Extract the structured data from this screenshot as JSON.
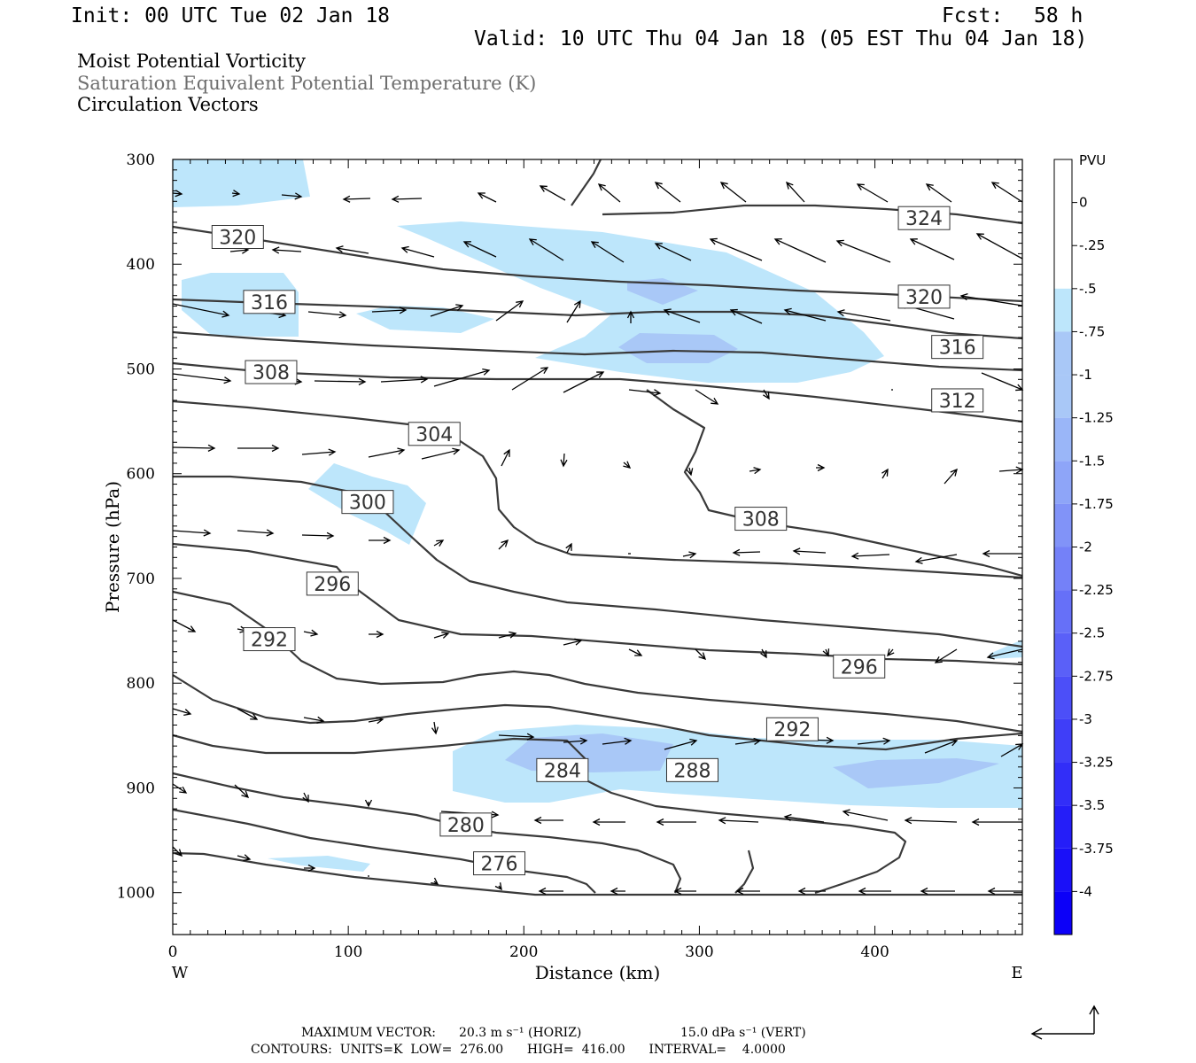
{
  "header": {
    "init": "Init: 00 UTC Tue 02 Jan 18",
    "fcst_label": "Fcst:",
    "fcst_value": "58 h",
    "valid": "Valid: 10 UTC Thu 04 Jan 18 (05 EST Thu 04 Jan 18)",
    "field1": "Moist Potential Vorticity",
    "field2": "Saturation Equivalent Potential Temperature (K)",
    "field3": "Circulation Vectors"
  },
  "footer": {
    "max_vector_label": "MAXIMUM VECTOR:",
    "max_horiz": "20.3 m s⁻¹ (HORIZ)",
    "max_vert": "15.0 dPa s⁻¹ (VERT)",
    "contours": "CONTOURS:  UNITS=K  LOW=  276.00      HIGH=  416.00      INTERVAL=    4.0000"
  },
  "colors": {
    "pv_fill_1": "#bde6fb",
    "pv_fill_2": "#a9c8f7",
    "contour": "#3a3a3a",
    "vector": "#000000"
  },
  "chart_data": {
    "type": "cross-section",
    "xlabel": "Distance (km)",
    "ylabel": "Pressure (hPa)",
    "xlim": [
      0,
      484
    ],
    "ylim": [
      1040,
      300
    ],
    "x_ticks": [
      0,
      100,
      200,
      300,
      400
    ],
    "y_ticks": [
      300,
      400,
      500,
      600,
      700,
      800,
      900,
      1000
    ],
    "x_ends": {
      "left": "W",
      "right": "E"
    },
    "colorbar": {
      "unit": "PVU",
      "levels": [
        "0",
        "-.25",
        "-.5",
        "-.75",
        "-1",
        "-1.25",
        "-1.5",
        "-1.75",
        "-2",
        "-2.25",
        "-2.5",
        "-2.75",
        "-3",
        "-3.25",
        "-3.5",
        "-3.75",
        "-4"
      ],
      "colors": [
        "#ffffff",
        "#ffffff",
        "#bde6fb",
        "#a9c8f7",
        "#a9c8f7",
        "#9ab6f8",
        "#8ea5f8",
        "#8193f8",
        "#7481f8",
        "#6670f8",
        "#5a60f8",
        "#4c4ff8",
        "#3f3ef8",
        "#322ef8",
        "#251ef8",
        "#1a10f8",
        "#0c00f8"
      ]
    },
    "contour_labels": [
      {
        "value": "324",
        "x": 428,
        "p": 356
      },
      {
        "value": "320",
        "x": 37,
        "p": 374
      },
      {
        "value": "320",
        "x": 428,
        "p": 431
      },
      {
        "value": "316",
        "x": 55,
        "p": 436
      },
      {
        "value": "316",
        "x": 447,
        "p": 479
      },
      {
        "value": "308",
        "x": 56,
        "p": 503
      },
      {
        "value": "312",
        "x": 447,
        "p": 530
      },
      {
        "value": "304",
        "x": 149,
        "p": 562
      },
      {
        "value": "300",
        "x": 111,
        "p": 627
      },
      {
        "value": "308",
        "x": 335,
        "p": 643
      },
      {
        "value": "296",
        "x": 91,
        "p": 705
      },
      {
        "value": "292",
        "x": 55,
        "p": 758
      },
      {
        "value": "296",
        "x": 391,
        "p": 784
      },
      {
        "value": "292",
        "x": 353,
        "p": 844
      },
      {
        "value": "284",
        "x": 222,
        "p": 883
      },
      {
        "value": "288",
        "x": 296,
        "p": 883
      },
      {
        "value": "280",
        "x": 167,
        "p": 935
      },
      {
        "value": "276",
        "x": 186,
        "p": 972
      }
    ]
  }
}
